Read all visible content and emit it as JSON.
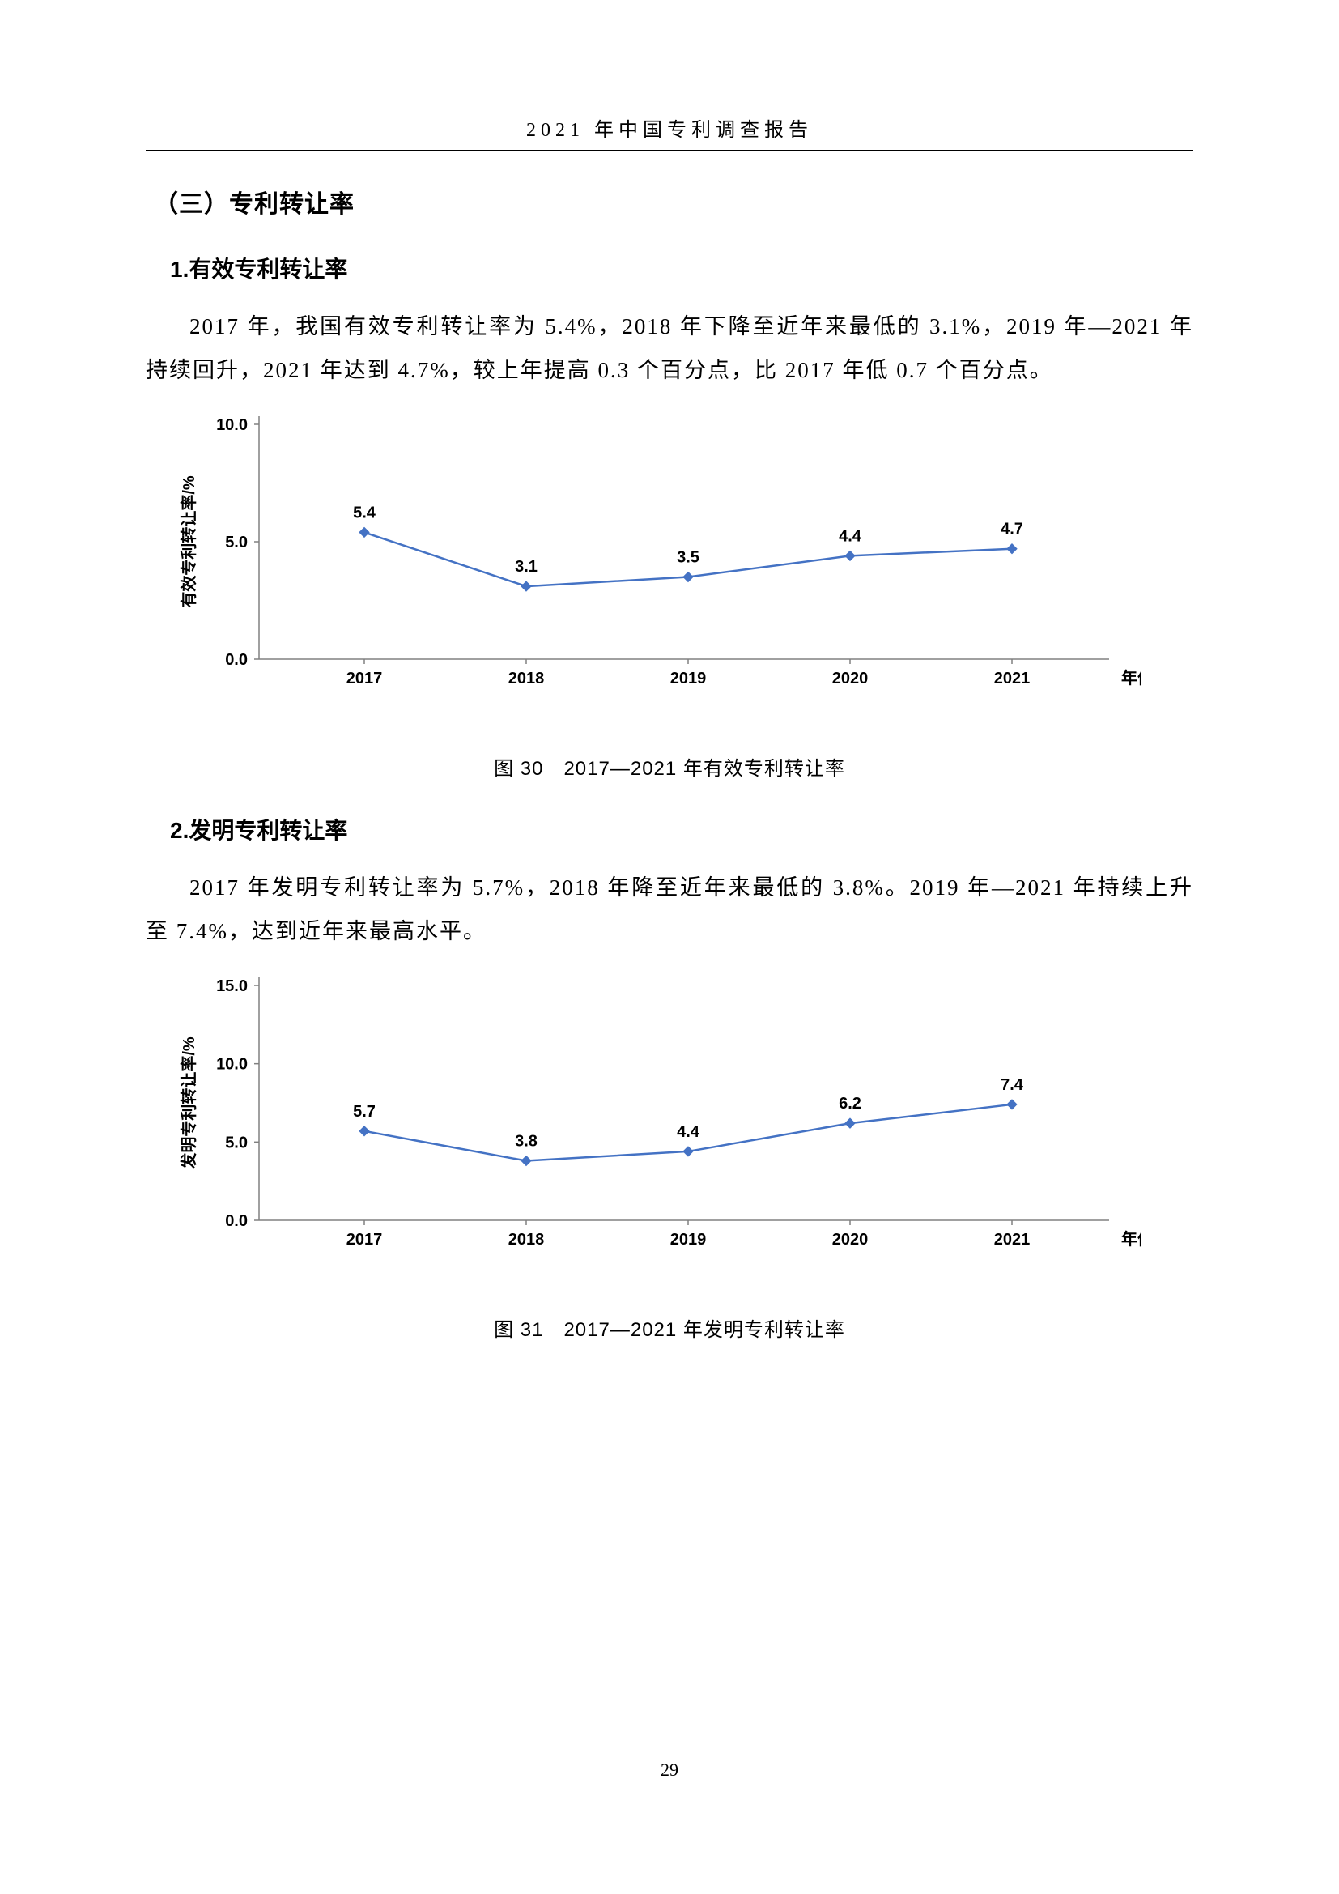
{
  "header": "2021 年中国专利调查报告",
  "page_number": "29",
  "section_heading": "（三）专利转让率",
  "sub1_heading": "1.有效专利转让率",
  "sub1_body": "2017 年，我国有效专利转让率为 5.4%，2018 年下降至近年来最低的 3.1%，2019 年—2021 年持续回升，2021 年达到 4.7%，较上年提高 0.3 个百分点，比 2017 年低 0.7 个百分点。",
  "chart1": {
    "type": "line",
    "ylabel": "有效专利转让率/%",
    "xlabel": "年份",
    "categories": [
      "2017",
      "2018",
      "2019",
      "2020",
      "2021"
    ],
    "values": [
      5.4,
      3.1,
      3.5,
      4.4,
      4.7
    ],
    "labels": [
      "5.4",
      "3.1",
      "3.5",
      "4.4",
      "4.7"
    ],
    "ylim": [
      0.0,
      10.0
    ],
    "ytick_step": 5.0,
    "yticks": [
      "0.0",
      "5.0",
      "10.0"
    ],
    "line_color": "#4472c4",
    "marker_color": "#4472c4",
    "marker_size": 6,
    "line_width": 2.5,
    "axis_color": "#808080",
    "label_fontsize": 20,
    "tick_fontsize": 20,
    "value_fontsize": 20,
    "value_font_weight": "bold",
    "caption": "图 30　2017—2021 年有效专利转让率"
  },
  "sub2_heading": "2.发明专利转让率",
  "sub2_body": "2017 年发明专利转让率为 5.7%，2018 年降至近年来最低的 3.8%。2019 年—2021 年持续上升至 7.4%，达到近年来最高水平。",
  "chart2": {
    "type": "line",
    "ylabel": "发明专利转让率/%",
    "xlabel": "年份",
    "categories": [
      "2017",
      "2018",
      "2019",
      "2020",
      "2021"
    ],
    "values": [
      5.7,
      3.8,
      4.4,
      6.2,
      7.4
    ],
    "labels": [
      "5.7",
      "3.8",
      "4.4",
      "6.2",
      "7.4"
    ],
    "ylim": [
      0.0,
      15.0
    ],
    "ytick_step": 5.0,
    "yticks": [
      "0.0",
      "5.0",
      "10.0",
      "15.0"
    ],
    "line_color": "#4472c4",
    "marker_color": "#4472c4",
    "marker_size": 6,
    "line_width": 2.5,
    "axis_color": "#808080",
    "label_fontsize": 20,
    "tick_fontsize": 20,
    "value_fontsize": 20,
    "value_font_weight": "bold",
    "caption": "图 31　2017—2021 年发明专利转让率"
  }
}
